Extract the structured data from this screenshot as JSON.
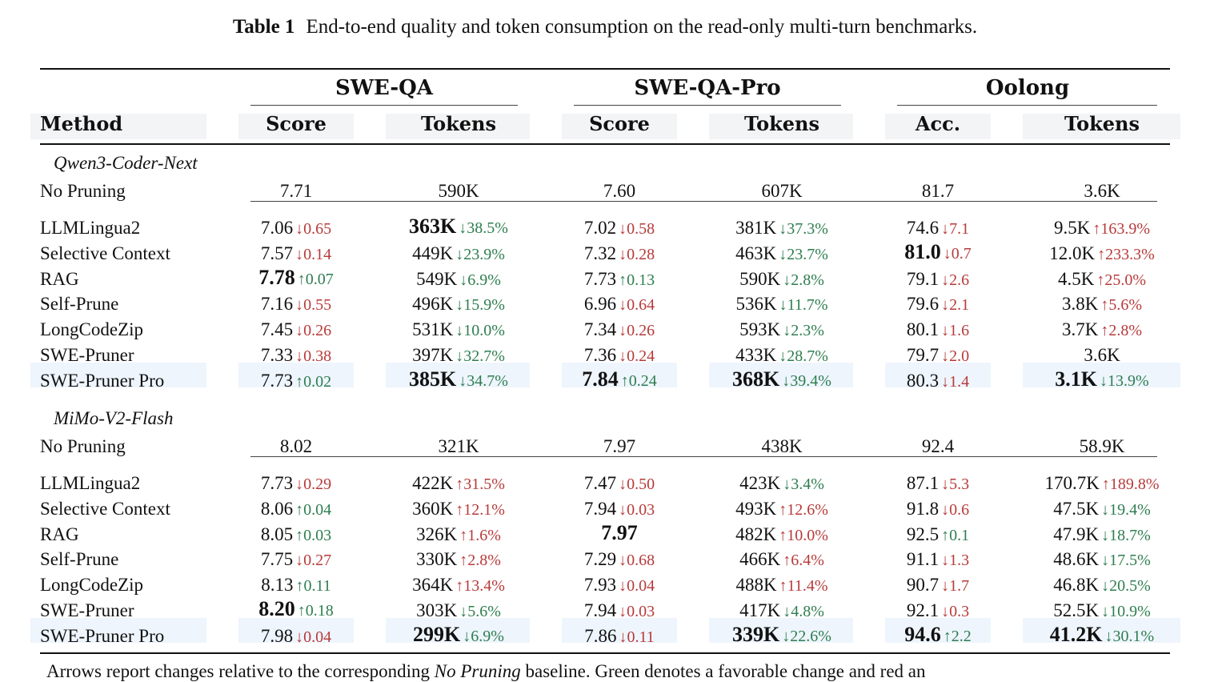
{
  "caption": {
    "label": "Table 1",
    "text": "End-to-end quality and token consumption on the read-only multi-turn benchmarks."
  },
  "groups": [
    "SWE-QA",
    "SWE-QA-Pro",
    "Oolong"
  ],
  "columns": [
    "Method",
    "Score",
    "Tokens",
    "Score",
    "Tokens",
    "Acc.",
    "Tokens"
  ],
  "sections": [
    {
      "model": "Qwen3-Coder-Next",
      "baseline": {
        "method": "No Pruning",
        "cells": [
          {
            "v": "7.71",
            "d": "",
            "dir": "",
            "b": false
          },
          {
            "v": "590K",
            "d": "",
            "dir": "",
            "b": false
          },
          {
            "v": "7.60",
            "d": "",
            "dir": "",
            "b": false
          },
          {
            "v": "607K",
            "d": "",
            "dir": "",
            "b": false
          },
          {
            "v": "81.7",
            "d": "",
            "dir": "",
            "b": false
          },
          {
            "v": "3.6K",
            "d": "",
            "dir": "",
            "b": false
          }
        ]
      },
      "rows": [
        {
          "method": "LLMLingua2",
          "hl": false,
          "cells": [
            {
              "v": "7.06",
              "d": "↓0.65",
              "dir": "r",
              "b": false
            },
            {
              "v": "363K",
              "d": "↓38.5%",
              "dir": "g",
              "b": true
            },
            {
              "v": "7.02",
              "d": "↓0.58",
              "dir": "r",
              "b": false
            },
            {
              "v": "381K",
              "d": "↓37.3%",
              "dir": "g",
              "b": false
            },
            {
              "v": "74.6",
              "d": "↓7.1",
              "dir": "r",
              "b": false
            },
            {
              "v": "9.5K",
              "d": "↑163.9%",
              "dir": "r",
              "b": false
            }
          ]
        },
        {
          "method": "Selective Context",
          "hl": false,
          "cells": [
            {
              "v": "7.57",
              "d": "↓0.14",
              "dir": "r",
              "b": false
            },
            {
              "v": "449K",
              "d": "↓23.9%",
              "dir": "g",
              "b": false
            },
            {
              "v": "7.32",
              "d": "↓0.28",
              "dir": "r",
              "b": false
            },
            {
              "v": "463K",
              "d": "↓23.7%",
              "dir": "g",
              "b": false
            },
            {
              "v": "81.0",
              "d": "↓0.7",
              "dir": "r",
              "b": true
            },
            {
              "v": "12.0K",
              "d": "↑233.3%",
              "dir": "r",
              "b": false
            }
          ]
        },
        {
          "method": "RAG",
          "hl": false,
          "cells": [
            {
              "v": "7.78",
              "d": "↑0.07",
              "dir": "g",
              "b": true
            },
            {
              "v": "549K",
              "d": "↓6.9%",
              "dir": "g",
              "b": false
            },
            {
              "v": "7.73",
              "d": "↑0.13",
              "dir": "g",
              "b": false
            },
            {
              "v": "590K",
              "d": "↓2.8%",
              "dir": "g",
              "b": false
            },
            {
              "v": "79.1",
              "d": "↓2.6",
              "dir": "r",
              "b": false
            },
            {
              "v": "4.5K",
              "d": "↑25.0%",
              "dir": "r",
              "b": false
            }
          ]
        },
        {
          "method": "Self-Prune",
          "hl": false,
          "cells": [
            {
              "v": "7.16",
              "d": "↓0.55",
              "dir": "r",
              "b": false
            },
            {
              "v": "496K",
              "d": "↓15.9%",
              "dir": "g",
              "b": false
            },
            {
              "v": "6.96",
              "d": "↓0.64",
              "dir": "r",
              "b": false
            },
            {
              "v": "536K",
              "d": "↓11.7%",
              "dir": "g",
              "b": false
            },
            {
              "v": "79.6",
              "d": "↓2.1",
              "dir": "r",
              "b": false
            },
            {
              "v": "3.8K",
              "d": "↑5.6%",
              "dir": "r",
              "b": false
            }
          ]
        },
        {
          "method": "LongCodeZip",
          "hl": false,
          "cells": [
            {
              "v": "7.45",
              "d": "↓0.26",
              "dir": "r",
              "b": false
            },
            {
              "v": "531K",
              "d": "↓10.0%",
              "dir": "g",
              "b": false
            },
            {
              "v": "7.34",
              "d": "↓0.26",
              "dir": "r",
              "b": false
            },
            {
              "v": "593K",
              "d": "↓2.3%",
              "dir": "g",
              "b": false
            },
            {
              "v": "80.1",
              "d": "↓1.6",
              "dir": "r",
              "b": false
            },
            {
              "v": "3.7K",
              "d": "↑2.8%",
              "dir": "r",
              "b": false
            }
          ]
        },
        {
          "method": "SWE-Pruner",
          "hl": false,
          "cells": [
            {
              "v": "7.33",
              "d": "↓0.38",
              "dir": "r",
              "b": false
            },
            {
              "v": "397K",
              "d": "↓32.7%",
              "dir": "g",
              "b": false
            },
            {
              "v": "7.36",
              "d": "↓0.24",
              "dir": "r",
              "b": false
            },
            {
              "v": "433K",
              "d": "↓28.7%",
              "dir": "g",
              "b": false
            },
            {
              "v": "79.7",
              "d": "↓2.0",
              "dir": "r",
              "b": false
            },
            {
              "v": "3.6K",
              "d": "",
              "dir": "",
              "b": false
            }
          ]
        },
        {
          "method": "SWE-Pruner Pro",
          "hl": true,
          "cells": [
            {
              "v": "7.73",
              "d": "↑0.02",
              "dir": "g",
              "b": false
            },
            {
              "v": "385K",
              "d": "↓34.7%",
              "dir": "g",
              "b": true
            },
            {
              "v": "7.84",
              "d": "↑0.24",
              "dir": "g",
              "b": true
            },
            {
              "v": "368K",
              "d": "↓39.4%",
              "dir": "g",
              "b": true
            },
            {
              "v": "80.3",
              "d": "↓1.4",
              "dir": "r",
              "b": false
            },
            {
              "v": "3.1K",
              "d": "↓13.9%",
              "dir": "g",
              "b": true
            }
          ]
        }
      ]
    },
    {
      "model": "MiMo-V2-Flash",
      "baseline": {
        "method": "No Pruning",
        "cells": [
          {
            "v": "8.02",
            "d": "",
            "dir": "",
            "b": false
          },
          {
            "v": "321K",
            "d": "",
            "dir": "",
            "b": false
          },
          {
            "v": "7.97",
            "d": "",
            "dir": "",
            "b": false
          },
          {
            "v": "438K",
            "d": "",
            "dir": "",
            "b": false
          },
          {
            "v": "92.4",
            "d": "",
            "dir": "",
            "b": false
          },
          {
            "v": "58.9K",
            "d": "",
            "dir": "",
            "b": false
          }
        ]
      },
      "rows": [
        {
          "method": "LLMLingua2",
          "hl": false,
          "cells": [
            {
              "v": "7.73",
              "d": "↓0.29",
              "dir": "r",
              "b": false
            },
            {
              "v": "422K",
              "d": "↑31.5%",
              "dir": "r",
              "b": false
            },
            {
              "v": "7.47",
              "d": "↓0.50",
              "dir": "r",
              "b": false
            },
            {
              "v": "423K",
              "d": "↓3.4%",
              "dir": "g",
              "b": false
            },
            {
              "v": "87.1",
              "d": "↓5.3",
              "dir": "r",
              "b": false
            },
            {
              "v": "170.7K",
              "d": "↑189.8%",
              "dir": "r",
              "b": false
            }
          ]
        },
        {
          "method": "Selective Context",
          "hl": false,
          "cells": [
            {
              "v": "8.06",
              "d": "↑0.04",
              "dir": "g",
              "b": false
            },
            {
              "v": "360K",
              "d": "↑12.1%",
              "dir": "r",
              "b": false
            },
            {
              "v": "7.94",
              "d": "↓0.03",
              "dir": "r",
              "b": false
            },
            {
              "v": "493K",
              "d": "↑12.6%",
              "dir": "r",
              "b": false
            },
            {
              "v": "91.8",
              "d": "↓0.6",
              "dir": "r",
              "b": false
            },
            {
              "v": "47.5K",
              "d": "↓19.4%",
              "dir": "g",
              "b": false
            }
          ]
        },
        {
          "method": "RAG",
          "hl": false,
          "cells": [
            {
              "v": "8.05",
              "d": "↑0.03",
              "dir": "g",
              "b": false
            },
            {
              "v": "326K",
              "d": "↑1.6%",
              "dir": "r",
              "b": false
            },
            {
              "v": "7.97",
              "d": "",
              "dir": "",
              "b": true
            },
            {
              "v": "482K",
              "d": "↑10.0%",
              "dir": "r",
              "b": false
            },
            {
              "v": "92.5",
              "d": "↑0.1",
              "dir": "g",
              "b": false
            },
            {
              "v": "47.9K",
              "d": "↓18.7%",
              "dir": "g",
              "b": false
            }
          ]
        },
        {
          "method": "Self-Prune",
          "hl": false,
          "cells": [
            {
              "v": "7.75",
              "d": "↓0.27",
              "dir": "r",
              "b": false
            },
            {
              "v": "330K",
              "d": "↑2.8%",
              "dir": "r",
              "b": false
            },
            {
              "v": "7.29",
              "d": "↓0.68",
              "dir": "r",
              "b": false
            },
            {
              "v": "466K",
              "d": "↑6.4%",
              "dir": "r",
              "b": false
            },
            {
              "v": "91.1",
              "d": "↓1.3",
              "dir": "r",
              "b": false
            },
            {
              "v": "48.6K",
              "d": "↓17.5%",
              "dir": "g",
              "b": false
            }
          ]
        },
        {
          "method": "LongCodeZip",
          "hl": false,
          "cells": [
            {
              "v": "8.13",
              "d": "↑0.11",
              "dir": "g",
              "b": false
            },
            {
              "v": "364K",
              "d": "↑13.4%",
              "dir": "r",
              "b": false
            },
            {
              "v": "7.93",
              "d": "↓0.04",
              "dir": "r",
              "b": false
            },
            {
              "v": "488K",
              "d": "↑11.4%",
              "dir": "r",
              "b": false
            },
            {
              "v": "90.7",
              "d": "↓1.7",
              "dir": "r",
              "b": false
            },
            {
              "v": "46.8K",
              "d": "↓20.5%",
              "dir": "g",
              "b": false
            }
          ]
        },
        {
          "method": "SWE-Pruner",
          "hl": false,
          "cells": [
            {
              "v": "8.20",
              "d": "↑0.18",
              "dir": "g",
              "b": true
            },
            {
              "v": "303K",
              "d": "↓5.6%",
              "dir": "g",
              "b": false
            },
            {
              "v": "7.94",
              "d": "↓0.03",
              "dir": "r",
              "b": false
            },
            {
              "v": "417K",
              "d": "↓4.8%",
              "dir": "g",
              "b": false
            },
            {
              "v": "92.1",
              "d": "↓0.3",
              "dir": "r",
              "b": false
            },
            {
              "v": "52.5K",
              "d": "↓10.9%",
              "dir": "g",
              "b": false
            }
          ]
        },
        {
          "method": "SWE-Pruner Pro",
          "hl": true,
          "cells": [
            {
              "v": "7.98",
              "d": "↓0.04",
              "dir": "r",
              "b": false
            },
            {
              "v": "299K",
              "d": "↓6.9%",
              "dir": "g",
              "b": true
            },
            {
              "v": "7.86",
              "d": "↓0.11",
              "dir": "r",
              "b": false
            },
            {
              "v": "339K",
              "d": "↓22.6%",
              "dir": "g",
              "b": true
            },
            {
              "v": "94.6",
              "d": "↑2.2",
              "dir": "g",
              "b": true
            },
            {
              "v": "41.2K",
              "d": "↓30.1%",
              "dir": "g",
              "b": true
            }
          ]
        }
      ]
    }
  ],
  "footnote": {
    "before": "Arrows report changes relative to the corresponding ",
    "emph": "No Pruning",
    "after": " baseline.  Green denotes a favorable change and red an"
  },
  "colors": {
    "favorable": "#2e7d4f",
    "unfavorable": "#b73a3a",
    "highlight": "#eef5fd",
    "header": "#f3f4f6"
  }
}
